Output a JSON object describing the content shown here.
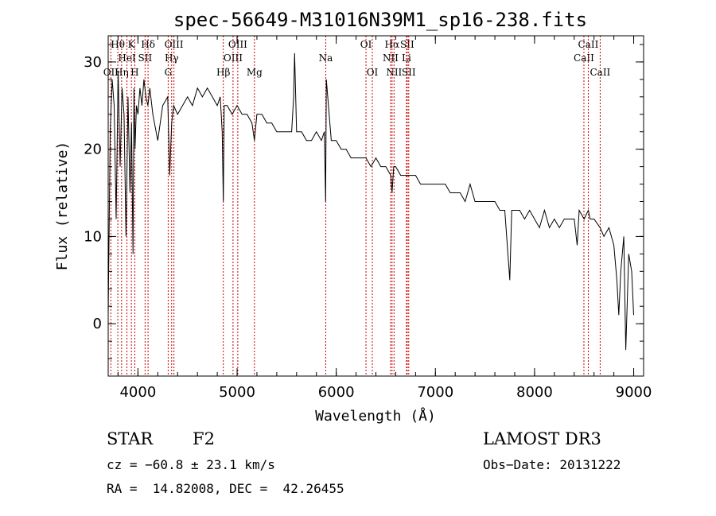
{
  "chart_data": {
    "type": "line",
    "title": "spec-56649-M31016N39M1_sp16-238.fits",
    "xlabel": "Wavelength (Å)",
    "ylabel": "Flux (relative)",
    "xlim": [
      3700,
      9100
    ],
    "ylim": [
      -6,
      33
    ],
    "xticks": [
      4000,
      5000,
      6000,
      7000,
      8000,
      9000
    ],
    "yticks": [
      0,
      10,
      20,
      30
    ],
    "series": [
      {
        "name": "flux",
        "x": [
          3700,
          3720,
          3740,
          3760,
          3780,
          3800,
          3820,
          3840,
          3860,
          3880,
          3900,
          3920,
          3935,
          3950,
          3960,
          3970,
          3985,
          4000,
          4020,
          4040,
          4060,
          4080,
          4100,
          4120,
          4150,
          4200,
          4250,
          4300,
          4320,
          4340,
          4360,
          4400,
          4450,
          4500,
          4550,
          4600,
          4650,
          4700,
          4750,
          4800,
          4830,
          4850,
          4861,
          4870,
          4900,
          4950,
          5000,
          5050,
          5100,
          5150,
          5175,
          5200,
          5250,
          5300,
          5350,
          5400,
          5450,
          5500,
          5550,
          5570,
          5580,
          5600,
          5650,
          5700,
          5750,
          5800,
          5850,
          5880,
          5893,
          5900,
          5950,
          6000,
          6050,
          6100,
          6150,
          6200,
          6250,
          6300,
          6350,
          6400,
          6450,
          6500,
          6550,
          6563,
          6580,
          6600,
          6650,
          6700,
          6750,
          6800,
          6850,
          6900,
          6950,
          7000,
          7050,
          7100,
          7150,
          7200,
          7250,
          7300,
          7350,
          7400,
          7450,
          7500,
          7550,
          7600,
          7650,
          7700,
          7750,
          7770,
          7800,
          7850,
          7900,
          7950,
          8000,
          8050,
          8100,
          8150,
          8200,
          8250,
          8300,
          8350,
          8400,
          8430,
          8450,
          8500,
          8542,
          8560,
          8600,
          8662,
          8700,
          8750,
          8800,
          8830,
          8850,
          8870,
          8900,
          8920,
          8950,
          8980,
          9000
        ],
        "y": [
          1,
          22,
          28,
          25,
          12,
          29,
          18,
          27,
          24,
          10,
          26,
          15,
          23,
          8,
          27,
          20,
          25,
          24,
          27,
          25,
          28,
          26,
          25,
          27,
          24,
          21,
          25,
          26,
          17,
          23,
          25,
          24,
          25,
          26,
          25,
          27,
          26,
          27,
          26,
          25,
          26,
          22,
          14,
          25,
          25,
          24,
          25,
          24,
          24,
          23,
          21,
          24,
          24,
          23,
          23,
          22,
          22,
          22,
          22,
          26,
          31,
          22,
          22,
          21,
          21,
          22,
          21,
          22,
          14,
          28,
          21,
          21,
          20,
          20,
          19,
          19,
          19,
          19,
          18,
          19,
          18,
          18,
          17,
          15,
          18,
          18,
          17,
          17,
          17,
          17,
          16,
          16,
          16,
          16,
          16,
          16,
          15,
          15,
          15,
          14,
          16,
          14,
          14,
          14,
          14,
          14,
          13,
          13,
          5,
          13,
          13,
          13,
          12,
          13,
          12,
          11,
          13,
          11,
          12,
          11,
          12,
          12,
          12,
          9,
          13,
          12,
          13,
          12,
          12,
          11,
          10,
          11,
          9,
          5,
          1,
          6,
          10,
          -3,
          8,
          6,
          1
        ]
      }
    ],
    "lines": [
      {
        "name": "OII",
        "x": 3727,
        "row": 3
      },
      {
        "name": "Hθ",
        "x": 3797,
        "row": 1
      },
      {
        "name": "Hη",
        "x": 3835,
        "row": 3
      },
      {
        "name": "HeI",
        "x": 3889,
        "row": 2
      },
      {
        "name": "K",
        "x": 3934,
        "row": 1
      },
      {
        "name": "H",
        "x": 3968,
        "row": 3
      },
      {
        "name": "SII",
        "x": 4072,
        "row": 2
      },
      {
        "name": "Hδ",
        "x": 4102,
        "row": 1
      },
      {
        "name": "G",
        "x": 4305,
        "row": 3
      },
      {
        "name": "Hγ",
        "x": 4340,
        "row": 2
      },
      {
        "name": "OIII",
        "x": 4363,
        "row": 1
      },
      {
        "name": "Hβ",
        "x": 4861,
        "row": 3
      },
      {
        "name": "OIII",
        "x": 4959,
        "row": 2
      },
      {
        "name": "OIII",
        "x": 5007,
        "row": 1
      },
      {
        "name": "Mg",
        "x": 5175,
        "row": 3
      },
      {
        "name": "Na",
        "x": 5894,
        "row": 2
      },
      {
        "name": "OI",
        "x": 6300,
        "row": 1
      },
      {
        "name": "OI",
        "x": 6364,
        "row": 3
      },
      {
        "name": "NII",
        "x": 6548,
        "row": 2
      },
      {
        "name": "Hα",
        "x": 6563,
        "row": 1
      },
      {
        "name": "NII",
        "x": 6583,
        "row": 3
      },
      {
        "name": "Li",
        "x": 6708,
        "row": 2
      },
      {
        "name": "SII",
        "x": 6716,
        "row": 1
      },
      {
        "name": "SII",
        "x": 6731,
        "row": 3
      },
      {
        "name": "CaII",
        "x": 8498,
        "row": 2
      },
      {
        "name": "CaII",
        "x": 8542,
        "row": 1
      },
      {
        "name": "CaII",
        "x": 8662,
        "row": 3
      }
    ]
  },
  "info": {
    "class": "STAR",
    "subclass": "F2",
    "survey": "LAMOST DR3",
    "cz": "cz = −60.8 ± 23.1 km/s",
    "obsdate": "Obs−Date: 20131222",
    "coords": "RA =  14.82008, DEC =  42.26455"
  },
  "colors": {
    "axis": "#000000",
    "line_marker": "#cc0000",
    "spectrum": "#000000"
  }
}
